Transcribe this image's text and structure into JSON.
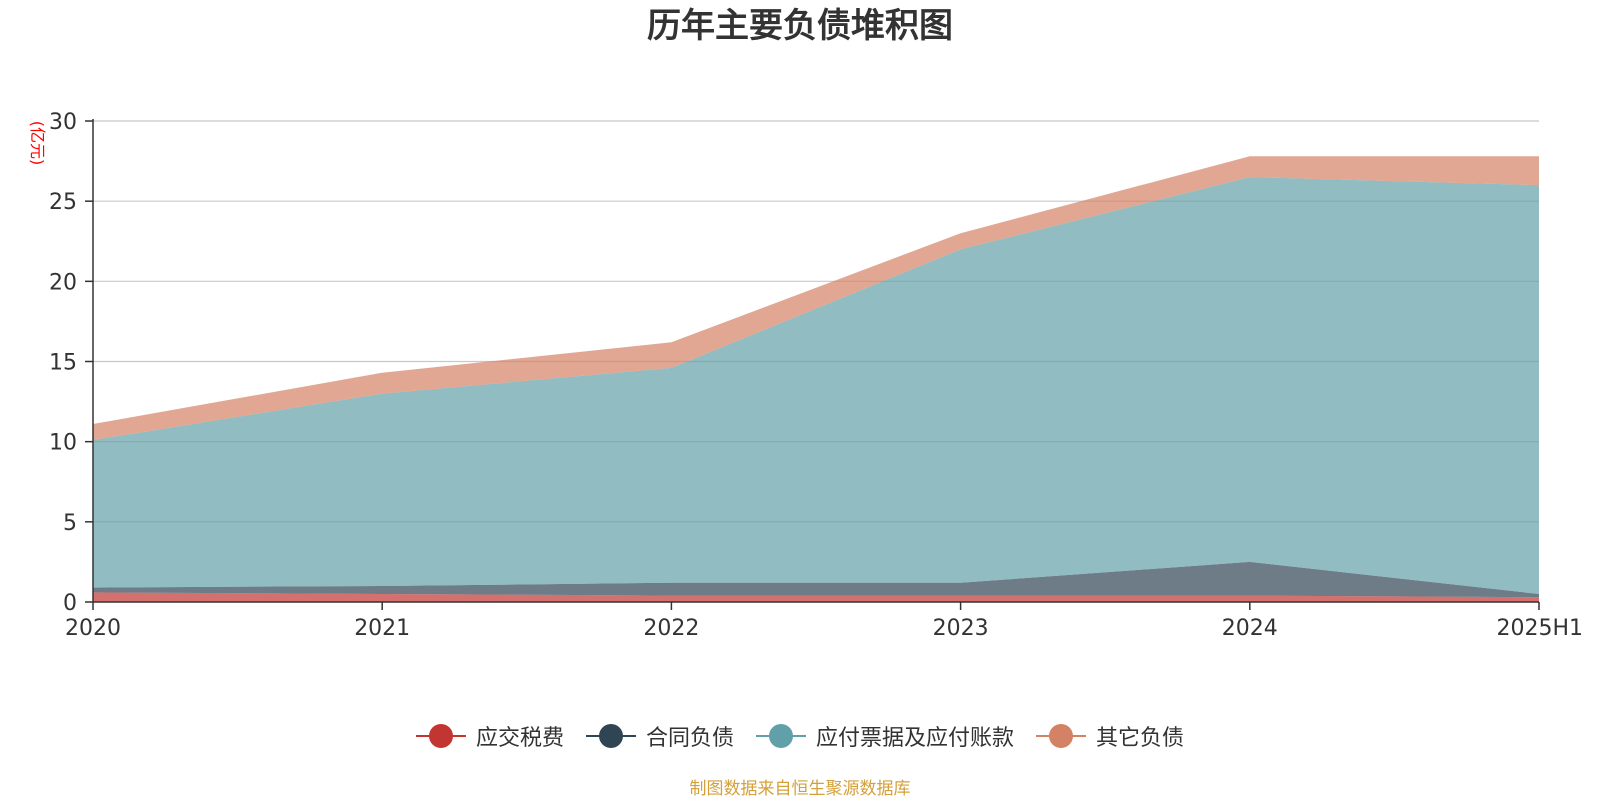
{
  "chart_data": {
    "type": "area",
    "stacked": true,
    "title": "历年主要负债堆积图",
    "ylabel": "(亿元)",
    "xlabel": "",
    "categories": [
      "2020",
      "2021",
      "2022",
      "2023",
      "2024",
      "2025H1"
    ],
    "ylim": [
      0,
      30
    ],
    "yticks": [
      "0",
      "5",
      "10",
      "15",
      "20",
      "25",
      "30"
    ],
    "grid": true,
    "legend_position": "bottom",
    "series": [
      {
        "name": "应交税费",
        "color": "#c23531",
        "values": [
          0.6,
          0.5,
          0.4,
          0.4,
          0.4,
          0.3
        ]
      },
      {
        "name": "合同负债",
        "color": "#2f4554",
        "values": [
          0.3,
          0.5,
          0.8,
          0.8,
          2.1,
          0.2
        ]
      },
      {
        "name": "应付票据及应付账款",
        "color": "#61a0a8",
        "values": [
          9.2,
          12.0,
          13.4,
          20.8,
          24.0,
          25.5
        ]
      },
      {
        "name": "其它负债",
        "color": "#d48265",
        "values": [
          1.0,
          1.3,
          1.6,
          1.0,
          1.3,
          1.8
        ]
      }
    ]
  },
  "source_note": "制图数据来自恒生聚源数据库"
}
